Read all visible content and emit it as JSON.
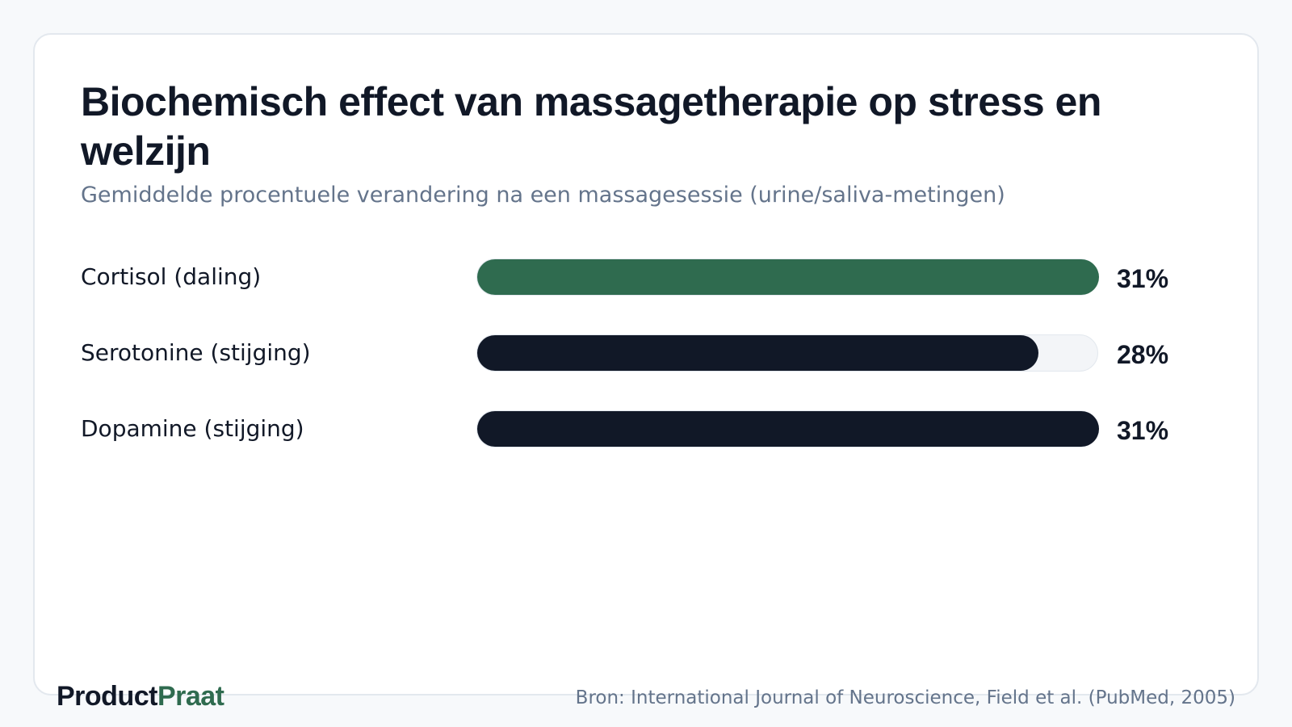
{
  "title": "Biochemisch effect van massagetherapie op stress en welzijn",
  "subtitle": "Gemiddelde procentuele verandering na een massagesessie (urine/saliva-metingen)",
  "brand": {
    "part1": "Product",
    "part2": "Praat"
  },
  "source": "Bron: International Journal of Neuroscience, Field et al. (PubMed, 2005)",
  "colors": {
    "highlight": "#2f6b4f",
    "default": "#111827",
    "track": "#f3f5f8"
  },
  "chart_data": {
    "type": "bar",
    "orientation": "horizontal",
    "categories": [
      "Cortisol (daling)",
      "Serotonine (stijging)",
      "Dopamine (stijging)"
    ],
    "values": [
      31,
      28,
      31
    ],
    "value_labels": [
      "31%",
      "28%",
      "31%"
    ],
    "unit": "%",
    "xlim": [
      0,
      31
    ],
    "highlight_index": 0,
    "grid": false,
    "legend": "none"
  }
}
